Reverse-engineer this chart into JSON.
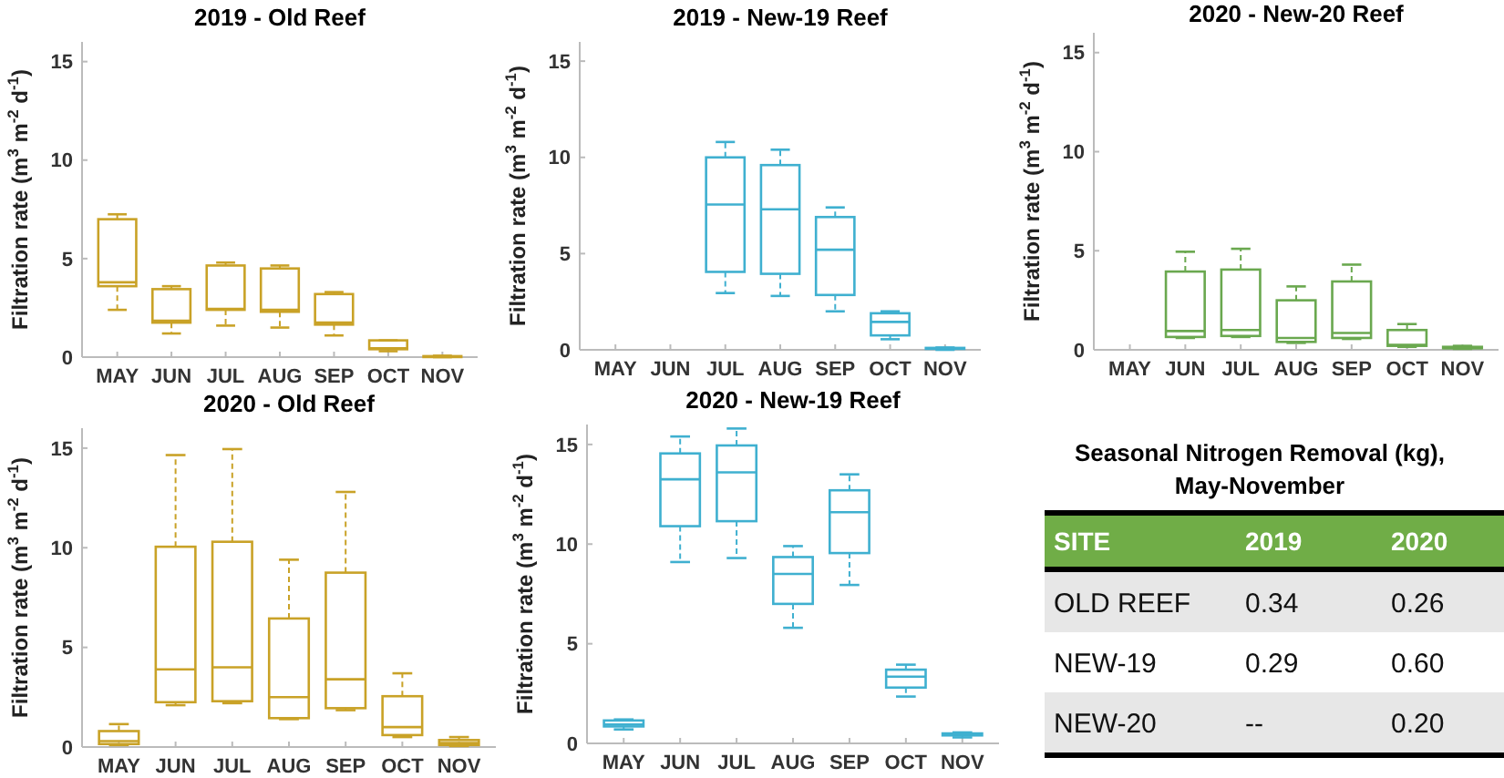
{
  "chart_data": [
    {
      "type": "box",
      "title": "2019 - Old Reef",
      "ylabel": "Filtration rate (m$^{3}$ m$^{-2}$ d$^{-1}$)",
      "categories": [
        "MAY",
        "JUN",
        "JUL",
        "AUG",
        "SEP",
        "OCT",
        "NOV"
      ],
      "color": "#c9a227",
      "ylim": [
        0,
        16
      ],
      "yticks": [
        0,
        5,
        10,
        15
      ],
      "boxes": [
        {
          "low": 2.4,
          "q1": 3.6,
          "median": 3.8,
          "q3": 7.0,
          "high": 7.25
        },
        {
          "low": 1.2,
          "q1": 1.75,
          "median": 1.85,
          "q3": 3.45,
          "high": 3.6
        },
        {
          "low": 1.6,
          "q1": 2.4,
          "median": 2.45,
          "q3": 4.65,
          "high": 4.8
        },
        {
          "low": 1.5,
          "q1": 2.3,
          "median": 2.4,
          "q3": 4.5,
          "high": 4.65
        },
        {
          "low": 1.1,
          "q1": 1.65,
          "median": 1.75,
          "q3": 3.2,
          "high": 3.3
        },
        {
          "low": 0.3,
          "q1": 0.4,
          "median": 0.45,
          "q3": 0.85,
          "high": 0.85
        },
        {
          "low": 0,
          "q1": 0.02,
          "median": 0.03,
          "q3": 0.05,
          "high": 0.07
        }
      ]
    },
    {
      "type": "box",
      "title": "2019 - New-19 Reef",
      "ylabel": "Filtration rate (m$^{3}$ m$^{-2}$ d$^{-1}$)",
      "categories": [
        "MAY",
        "JUN",
        "JUL",
        "AUG",
        "SEP",
        "OCT",
        "NOV"
      ],
      "color": "#3fb0d0",
      "ylim": [
        0,
        16
      ],
      "yticks": [
        0,
        5,
        10,
        15
      ],
      "boxes": [
        null,
        null,
        {
          "low": 2.95,
          "q1": 4.05,
          "median": 7.55,
          "q3": 10.0,
          "high": 10.8
        },
        {
          "low": 2.8,
          "q1": 3.95,
          "median": 7.3,
          "q3": 9.6,
          "high": 10.4
        },
        {
          "low": 2.0,
          "q1": 2.85,
          "median": 5.2,
          "q3": 6.9,
          "high": 7.4
        },
        {
          "low": 0.55,
          "q1": 0.75,
          "median": 1.45,
          "q3": 1.9,
          "high": 2.0
        },
        {
          "low": 0,
          "q1": 0.05,
          "median": 0.08,
          "q3": 0.1,
          "high": 0.12
        }
      ]
    },
    {
      "type": "box",
      "title": "2020 - New-20 Reef",
      "ylabel": "Filtration rate (m$^{3}$ m$^{-2}$ d$^{-1}$)",
      "categories": [
        "MAY",
        "JUN",
        "JUL",
        "AUG",
        "SEP",
        "OCT",
        "NOV"
      ],
      "color": "#6aa84f",
      "ylim": [
        0,
        16
      ],
      "yticks": [
        0,
        5,
        10,
        15
      ],
      "boxes": [
        null,
        {
          "low": 0.6,
          "q1": 0.65,
          "median": 0.95,
          "q3": 3.95,
          "high": 4.95
        },
        {
          "low": 0.65,
          "q1": 0.7,
          "median": 1.0,
          "q3": 4.05,
          "high": 5.1
        },
        {
          "low": 0.35,
          "q1": 0.4,
          "median": 0.6,
          "q3": 2.5,
          "high": 3.2
        },
        {
          "low": 0.55,
          "q1": 0.6,
          "median": 0.85,
          "q3": 3.45,
          "high": 4.3
        },
        {
          "low": 0.15,
          "q1": 0.2,
          "median": 0.25,
          "q3": 1.0,
          "high": 1.3
        },
        {
          "low": 0.05,
          "q1": 0.08,
          "median": 0.1,
          "q3": 0.15,
          "high": 0.2
        }
      ]
    },
    {
      "type": "box",
      "title": "2020 - Old Reef",
      "ylabel": "Filtration rate (m$^{3}$ m$^{-2}$ d$^{-1}$)",
      "categories": [
        "MAY",
        "JUN",
        "JUL",
        "AUG",
        "SEP",
        "OCT",
        "NOV"
      ],
      "color": "#c9a227",
      "ylim": [
        0,
        16
      ],
      "yticks": [
        0,
        5,
        10,
        15
      ],
      "boxes": [
        {
          "low": 0.1,
          "q1": 0.15,
          "median": 0.3,
          "q3": 0.8,
          "high": 1.15
        },
        {
          "low": 2.1,
          "q1": 2.25,
          "median": 3.9,
          "q3": 10.05,
          "high": 14.65
        },
        {
          "low": 2.2,
          "q1": 2.3,
          "median": 4.0,
          "q3": 10.3,
          "high": 14.95
        },
        {
          "low": 1.4,
          "q1": 1.45,
          "median": 2.5,
          "q3": 6.45,
          "high": 9.4
        },
        {
          "low": 1.85,
          "q1": 1.95,
          "median": 3.4,
          "q3": 8.75,
          "high": 12.8
        },
        {
          "low": 0.5,
          "q1": 0.6,
          "median": 1.0,
          "q3": 2.55,
          "high": 3.7
        },
        {
          "low": 0.05,
          "q1": 0.1,
          "median": 0.2,
          "q3": 0.35,
          "high": 0.5
        }
      ]
    },
    {
      "type": "box",
      "title": "2020 - New-19 Reef",
      "ylabel": "Filtration rate (m$^{3}$ m$^{-2}$ d$^{-1}$)",
      "categories": [
        "MAY",
        "JUN",
        "JUL",
        "AUG",
        "SEP",
        "OCT",
        "NOV"
      ],
      "color": "#3fb0d0",
      "ylim": [
        0,
        16
      ],
      "yticks": [
        0,
        5,
        10,
        15
      ],
      "boxes": [
        {
          "low": 0.7,
          "q1": 0.85,
          "median": 0.95,
          "q3": 1.15,
          "high": 1.2
        },
        {
          "low": 9.1,
          "q1": 10.9,
          "median": 13.25,
          "q3": 14.55,
          "high": 15.4
        },
        {
          "low": 9.3,
          "q1": 11.15,
          "median": 13.6,
          "q3": 14.95,
          "high": 15.8
        },
        {
          "low": 5.8,
          "q1": 7.0,
          "median": 8.5,
          "q3": 9.35,
          "high": 9.9
        },
        {
          "low": 7.95,
          "q1": 9.55,
          "median": 11.6,
          "q3": 12.7,
          "high": 13.5
        },
        {
          "low": 2.35,
          "q1": 2.8,
          "median": 3.35,
          "q3": 3.7,
          "high": 3.95
        },
        {
          "low": 0.3,
          "q1": 0.4,
          "median": 0.45,
          "q3": 0.5,
          "high": 0.55
        }
      ]
    },
    {
      "type": "other",
      "title": "Seasonal Nitrogen Removal (kg), May-November",
      "annotations": [
        "SITE",
        "2019",
        "2020",
        "OLD REEF",
        "0.34",
        "0.26",
        "NEW-19",
        "0.29",
        "0.60",
        "NEW-20",
        "--",
        "0.20"
      ]
    }
  ]
}
